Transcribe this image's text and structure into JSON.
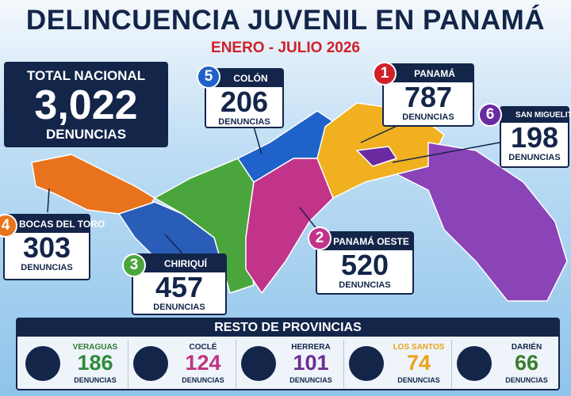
{
  "header": {
    "title": "DELINCUENCIA JUVENIL EN PANAMÁ",
    "subtitle": "ENERO - JULIO 2026"
  },
  "total": {
    "label": "TOTAL NACIONAL",
    "value": "3,022",
    "unit": "DENUNCIAS"
  },
  "callouts": [
    {
      "rank": "1",
      "name": "PANAMÁ",
      "value": "787",
      "unit": "DENUNCIAS"
    },
    {
      "rank": "2",
      "name": "PANAMÁ OESTE",
      "value": "520",
      "unit": "DENUNCIAS"
    },
    {
      "rank": "3",
      "name": "CHIRIQUÍ",
      "value": "457",
      "unit": "DENUNCIAS"
    },
    {
      "rank": "4",
      "name": "BOCAS DEL TORO",
      "value": "303",
      "unit": "DENUNCIAS"
    },
    {
      "rank": "5",
      "name": "COLÓN",
      "value": "206",
      "unit": "DENUNCIAS"
    },
    {
      "rank": "6",
      "name": "SAN MIGUELITO",
      "value": "198",
      "unit": "DENUNCIAS"
    }
  ],
  "rest": {
    "title": "RESTO DE PROVINCIAS",
    "items": [
      {
        "name": "VERAGUAS",
        "value": "186",
        "unit": "DENUNCIAS"
      },
      {
        "name": "COCLÉ",
        "value": "124",
        "unit": "DENUNCIAS"
      },
      {
        "name": "HERRERA",
        "value": "101",
        "unit": "DENUNCIAS"
      },
      {
        "name": "LOS SANTOS",
        "value": "74",
        "unit": "DENUNCIAS"
      },
      {
        "name": "DARIÉN",
        "value": "66",
        "unit": "DENUNCIAS"
      }
    ]
  }
}
